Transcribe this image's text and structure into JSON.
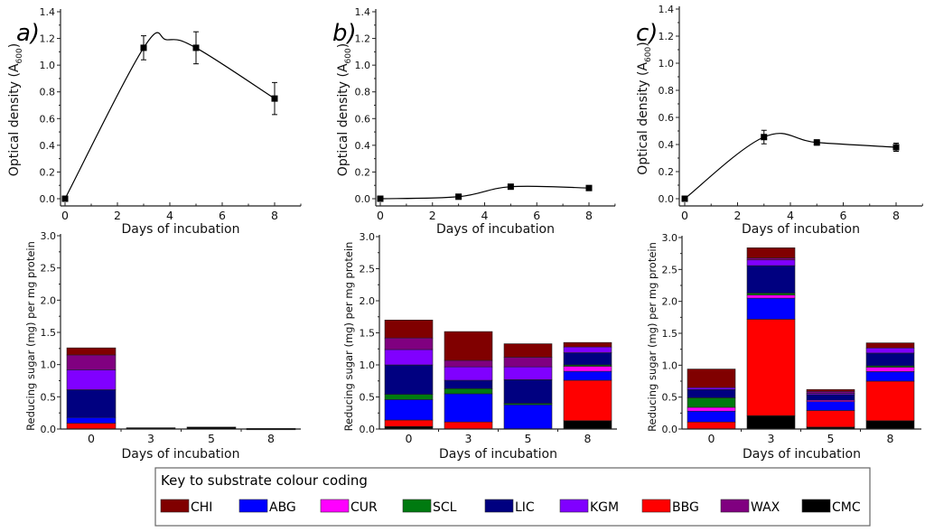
{
  "substrates": [
    {
      "key": "CMC",
      "color": "#000000"
    },
    {
      "key": "BBG",
      "color": "#ff0000"
    },
    {
      "key": "ABG",
      "color": "#0000ff"
    },
    {
      "key": "CUR",
      "color": "#ff00ff"
    },
    {
      "key": "SCL",
      "color": "#007a10"
    },
    {
      "key": "LIC",
      "color": "#000080"
    },
    {
      "key": "KGM",
      "color": "#8000ff"
    },
    {
      "key": "WAX",
      "color": "#800080"
    },
    {
      "key": "CHI",
      "color": "#800000"
    }
  ],
  "legend": {
    "title": "Key to substrate colour coding",
    "items": [
      {
        "label": "CHI",
        "color": "#800000"
      },
      {
        "label": "ABG",
        "color": "#0000ff"
      },
      {
        "label": "CUR",
        "color": "#ff00ff"
      },
      {
        "label": "SCL",
        "color": "#007a10"
      },
      {
        "label": "LIC",
        "color": "#000080"
      },
      {
        "label": "KGM",
        "color": "#8000ff"
      },
      {
        "label": "BBG",
        "color": "#ff0000"
      },
      {
        "label": "WAX",
        "color": "#800080"
      },
      {
        "label": "CMC",
        "color": "#000000"
      }
    ]
  },
  "chart_data": [
    {
      "panel": "a)",
      "type": "line",
      "title": "",
      "xlabel": "Days of incubation",
      "ylabel": "Optical density (A600)",
      "ylabel_main": "Optical density (A",
      "ylabel_sub": "600",
      "ylabel_end": ")",
      "xlim": [
        0,
        9
      ],
      "ylim": [
        0,
        1.4
      ],
      "xticks": [
        0,
        2,
        4,
        6,
        8
      ],
      "yticks": [
        "0.0",
        "0.2",
        "0.4",
        "0.6",
        "0.8",
        "1.0",
        "1.2",
        "1.4"
      ],
      "x": [
        0,
        3,
        5,
        8
      ],
      "y": [
        0.0,
        1.13,
        1.13,
        0.75
      ],
      "err": [
        0,
        0.09,
        0.12,
        0.12
      ],
      "smooth_peak": {
        "x": 3.9,
        "y": 1.19
      },
      "grid": false
    },
    {
      "panel": "b)",
      "type": "line",
      "title": "",
      "xlabel": "Days of incubation",
      "ylabel": "Optical density (A600)",
      "ylabel_main": "Optical density (A",
      "ylabel_sub": "600",
      "ylabel_end": ")",
      "xlim": [
        0,
        9
      ],
      "ylim": [
        0,
        1.4
      ],
      "xticks": [
        0,
        2,
        4,
        6,
        8
      ],
      "yticks": [
        "0.0",
        "0.2",
        "0.4",
        "0.6",
        "0.8",
        "1.0",
        "1.2",
        "1.4"
      ],
      "x": [
        0,
        3,
        5,
        8
      ],
      "y": [
        0.0,
        0.015,
        0.09,
        0.08
      ],
      "err": [
        0,
        0,
        0,
        0
      ],
      "grid": false
    },
    {
      "panel": "c)",
      "type": "line",
      "title": "",
      "xlabel": "Days of incubation",
      "ylabel": "Optical density (A600)",
      "ylabel_main": "Optical density (A",
      "ylabel_sub": "600",
      "ylabel_end": ")",
      "xlim": [
        0,
        9
      ],
      "ylim": [
        0,
        1.4
      ],
      "xticks": [
        0,
        2,
        4,
        6,
        8
      ],
      "yticks": [
        "0.0",
        "0.2",
        "0.4",
        "0.6",
        "0.8",
        "1.0",
        "1.2",
        "1.4"
      ],
      "x": [
        0,
        3,
        5,
        8
      ],
      "y": [
        0.0,
        0.455,
        0.415,
        0.38
      ],
      "err": [
        0,
        0.05,
        0.02,
        0.03
      ],
      "grid": false
    },
    {
      "panel": "a) bottom",
      "type": "bar",
      "stacked": true,
      "xlabel": "Days of incubation",
      "ylabel": "Reducing sugar (mg) per mg protein",
      "ylim": [
        0,
        3.0
      ],
      "yticks": [
        "0.0",
        "0.5",
        "1.0",
        "1.5",
        "2.0",
        "2.5",
        "3.0"
      ],
      "categories": [
        "0",
        "3",
        "5",
        "8"
      ],
      "series": [
        {
          "name": "CMC",
          "values": [
            0.0,
            0.02,
            0.03,
            0.01
          ]
        },
        {
          "name": "BBG",
          "values": [
            0.09,
            0,
            0,
            0
          ]
        },
        {
          "name": "ABG",
          "values": [
            0.09,
            0,
            0,
            0
          ]
        },
        {
          "name": "CUR",
          "values": [
            0,
            0,
            0,
            0
          ]
        },
        {
          "name": "SCL",
          "values": [
            0,
            0,
            0,
            0
          ]
        },
        {
          "name": "LIC",
          "values": [
            0.43,
            0,
            0,
            0
          ]
        },
        {
          "name": "KGM",
          "values": [
            0.31,
            0,
            0,
            0
          ]
        },
        {
          "name": "WAX",
          "values": [
            0.23,
            0,
            0,
            0
          ]
        },
        {
          "name": "CHI",
          "values": [
            0.11,
            0,
            0,
            0
          ]
        }
      ],
      "grid": false
    },
    {
      "panel": "b) bottom",
      "type": "bar",
      "stacked": true,
      "xlabel": "Days of incubation",
      "ylabel": "Reducing sugar (mg) per mg protein",
      "ylim": [
        0,
        3.0
      ],
      "yticks": [
        "0.0",
        "0.5",
        "1.0",
        "1.5",
        "2.0",
        "2.5",
        "3.0"
      ],
      "categories": [
        "0",
        "3",
        "5",
        "8"
      ],
      "series": [
        {
          "name": "CMC",
          "values": [
            0.04,
            0,
            0,
            0.13
          ]
        },
        {
          "name": "BBG",
          "values": [
            0.1,
            0.11,
            0,
            0.63
          ]
        },
        {
          "name": "ABG",
          "values": [
            0.32,
            0.44,
            0.38,
            0.14
          ]
        },
        {
          "name": "CUR",
          "values": [
            0,
            0,
            0,
            0.08
          ]
        },
        {
          "name": "SCL",
          "values": [
            0.08,
            0.08,
            0.02,
            0.02
          ]
        },
        {
          "name": "LIC",
          "values": [
            0.46,
            0.13,
            0.37,
            0.19
          ]
        },
        {
          "name": "KGM",
          "values": [
            0.24,
            0.21,
            0.2,
            0.09
          ]
        },
        {
          "name": "WAX",
          "values": [
            0.18,
            0.1,
            0.15,
            0
          ]
        },
        {
          "name": "CHI",
          "values": [
            0.28,
            0.45,
            0.21,
            0.07
          ]
        }
      ],
      "grid": false
    },
    {
      "panel": "c) bottom",
      "type": "bar",
      "stacked": true,
      "xlabel": "Days of incubation",
      "ylabel": "Reducing sugar (mg) per mg protein",
      "ylim": [
        0,
        3.0
      ],
      "yticks": [
        "0.0",
        "0.5",
        "1.0",
        "1.5",
        "2.0",
        "2.5",
        "3.0"
      ],
      "categories": [
        "0",
        "3",
        "5",
        "8"
      ],
      "series": [
        {
          "name": "CMC",
          "values": [
            0,
            0.21,
            0.03,
            0.13
          ]
        },
        {
          "name": "BBG",
          "values": [
            0.11,
            1.51,
            0.26,
            0.62
          ]
        },
        {
          "name": "ABG",
          "values": [
            0.17,
            0.33,
            0.14,
            0.15
          ]
        },
        {
          "name": "CUR",
          "values": [
            0.06,
            0.05,
            0.02,
            0.07
          ]
        },
        {
          "name": "SCL",
          "values": [
            0.15,
            0.03,
            0,
            0.02
          ]
        },
        {
          "name": "LIC",
          "values": [
            0.13,
            0.43,
            0.09,
            0.2
          ]
        },
        {
          "name": "KGM",
          "values": [
            0.03,
            0.09,
            0.02,
            0.08
          ]
        },
        {
          "name": "WAX",
          "values": [
            0,
            0.03,
            0.03,
            0
          ]
        },
        {
          "name": "CHI",
          "values": [
            0.29,
            0.16,
            0.03,
            0.08
          ]
        }
      ],
      "grid": false
    }
  ]
}
